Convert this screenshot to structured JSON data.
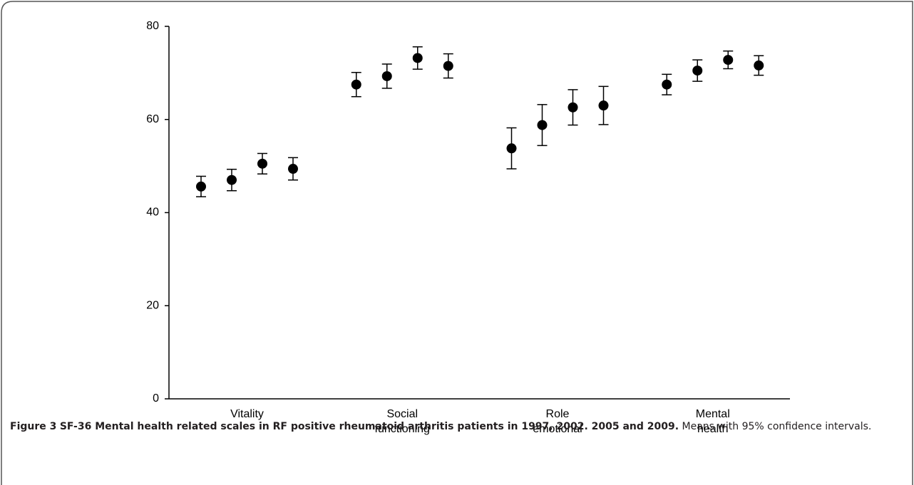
{
  "chart_data": {
    "type": "errorbar",
    "categories": [
      [
        "Vitality"
      ],
      [
        "Social",
        "functioning"
      ],
      [
        "Role",
        "emotional"
      ],
      [
        "Mental",
        "health"
      ]
    ],
    "values": [
      [
        45.6,
        47.0,
        50.5,
        49.4
      ],
      [
        67.5,
        69.3,
        73.2,
        71.5
      ],
      [
        53.8,
        58.8,
        62.6,
        63.0
      ],
      [
        67.5,
        70.5,
        72.8,
        71.6
      ]
    ],
    "errors": [
      [
        2.2,
        2.3,
        2.2,
        2.4
      ],
      [
        2.6,
        2.6,
        2.4,
        2.6
      ],
      [
        4.4,
        4.4,
        3.8,
        4.1
      ],
      [
        2.2,
        2.3,
        1.9,
        2.1
      ]
    ],
    "color": "#000000",
    "ylim": [
      0,
      80
    ],
    "yticks": [
      0,
      20,
      40,
      60,
      80
    ],
    "grid": false
  },
  "caption": {
    "label": "Figure 3",
    "title": "SF-36 Mental health related scales in RF positive rheumatoid arthritis patients in 1997, 2002. 2005 and 2009.",
    "text": "Means with 95% confidence intervals."
  }
}
